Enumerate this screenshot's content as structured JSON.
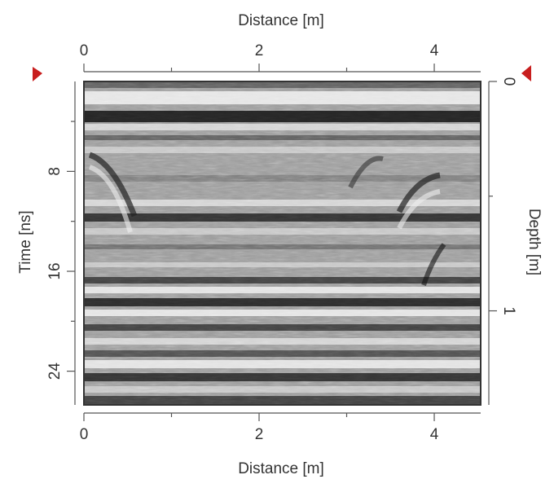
{
  "chart_data": {
    "type": "radargram",
    "x_label": "Distance [m]",
    "y_label": "Time [ns]",
    "y2_label": "Depth [m]",
    "xlim": [
      0,
      4.53
    ],
    "xticks": [
      0,
      2,
      4
    ],
    "xminorticks": [
      1,
      3
    ],
    "ylim": [
      0.8,
      26.7
    ],
    "yticks": [
      8,
      16,
      24
    ],
    "yminorticks": [
      4,
      12,
      20
    ],
    "y2lim": [
      0,
      1.41
    ],
    "y2ticks": [
      0,
      1
    ],
    "y2minorticks": [
      0.5
    ]
  }
}
